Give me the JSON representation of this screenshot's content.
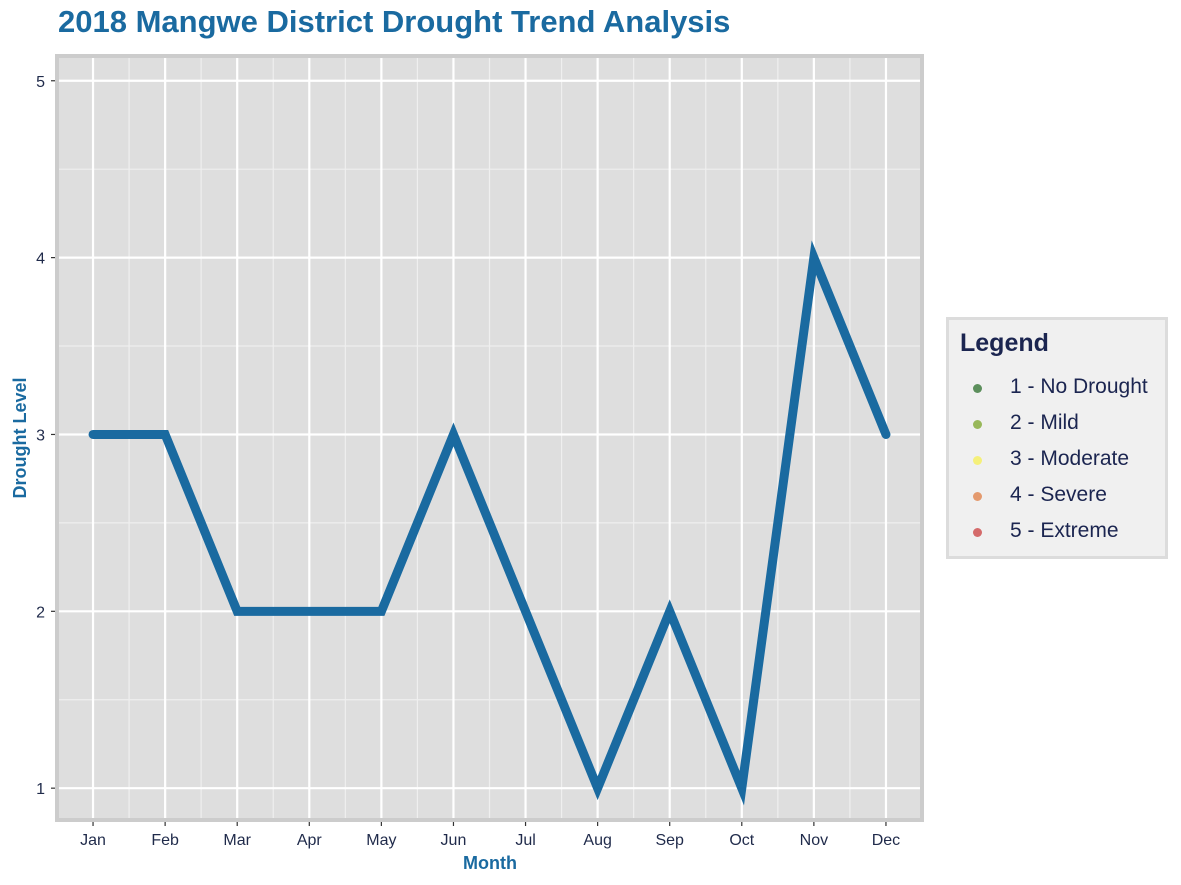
{
  "chart_data": {
    "type": "line",
    "title": "2018 Mangwe District Drought Trend Analysis",
    "xlabel": "Month",
    "ylabel": "Drought Level",
    "categories": [
      "Jan",
      "Feb",
      "Mar",
      "Apr",
      "May",
      "Jun",
      "Jul",
      "Aug",
      "Sep",
      "Oct",
      "Nov",
      "Dec"
    ],
    "series": [
      {
        "values": [
          3,
          3,
          2,
          2,
          2,
          3,
          2,
          1,
          2,
          1,
          4,
          3
        ],
        "color": "#1a6aa0"
      }
    ],
    "yticks": [
      "1",
      "2",
      "3",
      "4",
      "5"
    ],
    "ylim": [
      0.82,
      5.14
    ],
    "grid": true,
    "legend_position": "right",
    "legend": {
      "title": "Legend",
      "items": [
        {
          "label": "1 - No Drought",
          "color": "#5c8f5c"
        },
        {
          "label": "2 - Mild",
          "color": "#98b85a"
        },
        {
          "label": "3 - Moderate",
          "color": "#f5f07a"
        },
        {
          "label": "4 - Severe",
          "color": "#e49a6e"
        },
        {
          "label": "5 - Extreme",
          "color": "#d46a6a"
        }
      ]
    }
  }
}
